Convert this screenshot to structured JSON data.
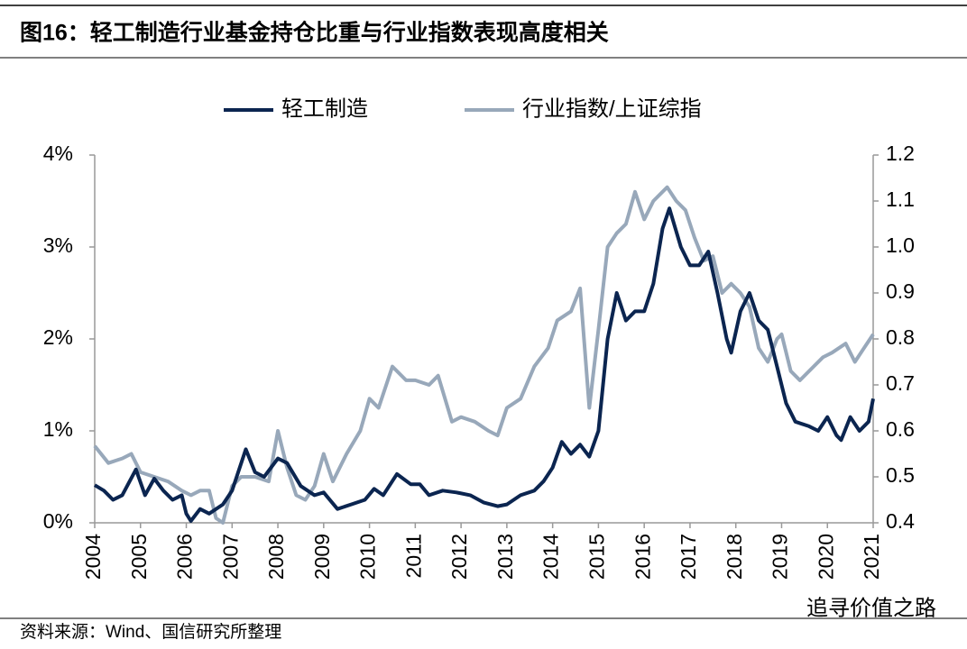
{
  "chart_data": {
    "type": "line",
    "title": "图16：轻工制造行业基金持仓比重与行业指数表现高度相关",
    "source": "资料来源：Wind、国信研究所整理",
    "watermark": "追寻价值之路",
    "xlim": [
      2004,
      2021
    ],
    "xticks": [
      2004,
      2005,
      2006,
      2007,
      2008,
      2009,
      2010,
      2011,
      2012,
      2013,
      2014,
      2015,
      2016,
      2017,
      2018,
      2019,
      2020,
      2021
    ],
    "ylim": [
      0,
      4
    ],
    "yticks": [
      {
        "value": 0,
        "label": "0%"
      },
      {
        "value": 1,
        "label": "1%"
      },
      {
        "value": 2,
        "label": "2%"
      },
      {
        "value": 3,
        "label": "3%"
      },
      {
        "value": 4,
        "label": "4%"
      }
    ],
    "y2lim": [
      0.4,
      1.2
    ],
    "y2ticks": [
      0.4,
      0.5,
      0.6,
      0.7,
      0.8,
      0.9,
      {
        "value": 1,
        "label": "1.0"
      },
      1.1,
      1.2
    ],
    "legend": "top",
    "series": [
      {
        "name": "轻工制造",
        "color": "#0b2550",
        "x": [
          2004.0,
          2004.2,
          2004.4,
          2004.6,
          2004.9,
          2005.1,
          2005.3,
          2005.5,
          2005.7,
          2005.9,
          2006.0,
          2006.1,
          2006.3,
          2006.5,
          2006.8,
          2007.0,
          2007.3,
          2007.5,
          2007.7,
          2008.0,
          2008.2,
          2008.5,
          2008.8,
          2009.0,
          2009.3,
          2009.6,
          2009.9,
          2010.1,
          2010.3,
          2010.6,
          2010.9,
          2011.1,
          2011.3,
          2011.6,
          2011.9,
          2012.2,
          2012.5,
          2012.8,
          2013.0,
          2013.3,
          2013.6,
          2013.8,
          2014.0,
          2014.2,
          2014.4,
          2014.6,
          2014.8,
          2015.0,
          2015.2,
          2015.4,
          2015.6,
          2015.8,
          2016.0,
          2016.2,
          2016.4,
          2016.55,
          2016.8,
          2017.0,
          2017.2,
          2017.4,
          2017.6,
          2017.8,
          2017.9,
          2018.1,
          2018.3,
          2018.5,
          2018.7,
          2018.9,
          2019.1,
          2019.3,
          2019.6,
          2019.8,
          2020.0,
          2020.2,
          2020.3,
          2020.5,
          2020.7,
          2020.9,
          2021.0
        ],
        "values": [
          0.41,
          0.35,
          0.25,
          0.3,
          0.58,
          0.3,
          0.48,
          0.35,
          0.25,
          0.3,
          0.1,
          0.02,
          0.15,
          0.1,
          0.2,
          0.35,
          0.8,
          0.55,
          0.5,
          0.7,
          0.65,
          0.4,
          0.3,
          0.33,
          0.15,
          0.2,
          0.25,
          0.37,
          0.3,
          0.53,
          0.42,
          0.42,
          0.3,
          0.35,
          0.33,
          0.3,
          0.22,
          0.18,
          0.2,
          0.3,
          0.35,
          0.45,
          0.6,
          0.88,
          0.75,
          0.85,
          0.72,
          1.0,
          2.0,
          2.5,
          2.2,
          2.3,
          2.3,
          2.6,
          3.2,
          3.42,
          3.0,
          2.8,
          2.8,
          2.95,
          2.5,
          2.0,
          1.85,
          2.3,
          2.5,
          2.2,
          2.1,
          1.7,
          1.3,
          1.1,
          1.05,
          1.0,
          1.15,
          0.95,
          0.9,
          1.15,
          1.0,
          1.1,
          1.35
        ]
      },
      {
        "name": "行业指数/上证综指",
        "color": "#98a8ba",
        "axis": "y2",
        "x": [
          2004.0,
          2004.3,
          2004.6,
          2004.8,
          2005.0,
          2005.3,
          2005.6,
          2005.9,
          2006.1,
          2006.3,
          2006.5,
          2006.65,
          2006.8,
          2007.0,
          2007.2,
          2007.5,
          2007.8,
          2008.0,
          2008.2,
          2008.4,
          2008.6,
          2008.8,
          2009.0,
          2009.2,
          2009.5,
          2009.8,
          2010.0,
          2010.2,
          2010.5,
          2010.8,
          2011.0,
          2011.3,
          2011.5,
          2011.8,
          2012.0,
          2012.3,
          2012.6,
          2012.8,
          2013.0,
          2013.3,
          2013.6,
          2013.9,
          2014.1,
          2014.4,
          2014.6,
          2014.8,
          2015.0,
          2015.2,
          2015.4,
          2015.6,
          2015.8,
          2016.0,
          2016.2,
          2016.5,
          2016.7,
          2016.9,
          2017.1,
          2017.3,
          2017.5,
          2017.7,
          2017.9,
          2018.1,
          2018.3,
          2018.5,
          2018.7,
          2018.9,
          2019.0,
          2019.2,
          2019.4,
          2019.7,
          2019.9,
          2020.1,
          2020.4,
          2020.6,
          2020.8,
          2021.0
        ],
        "values": [
          0.567,
          0.53,
          0.54,
          0.55,
          0.51,
          0.5,
          0.49,
          0.47,
          0.46,
          0.47,
          0.47,
          0.41,
          0.4,
          0.48,
          0.5,
          0.5,
          0.49,
          0.6,
          0.52,
          0.46,
          0.45,
          0.48,
          0.55,
          0.49,
          0.55,
          0.6,
          0.67,
          0.65,
          0.74,
          0.71,
          0.71,
          0.7,
          0.72,
          0.62,
          0.63,
          0.62,
          0.6,
          0.59,
          0.65,
          0.67,
          0.74,
          0.78,
          0.84,
          0.86,
          0.91,
          0.65,
          0.82,
          1.0,
          1.03,
          1.05,
          1.12,
          1.06,
          1.1,
          1.13,
          1.1,
          1.08,
          1.02,
          0.97,
          0.98,
          0.9,
          0.92,
          0.9,
          0.87,
          0.78,
          0.75,
          0.8,
          0.81,
          0.73,
          0.71,
          0.74,
          0.76,
          0.77,
          0.79,
          0.75,
          0.78,
          0.81
        ]
      }
    ]
  }
}
